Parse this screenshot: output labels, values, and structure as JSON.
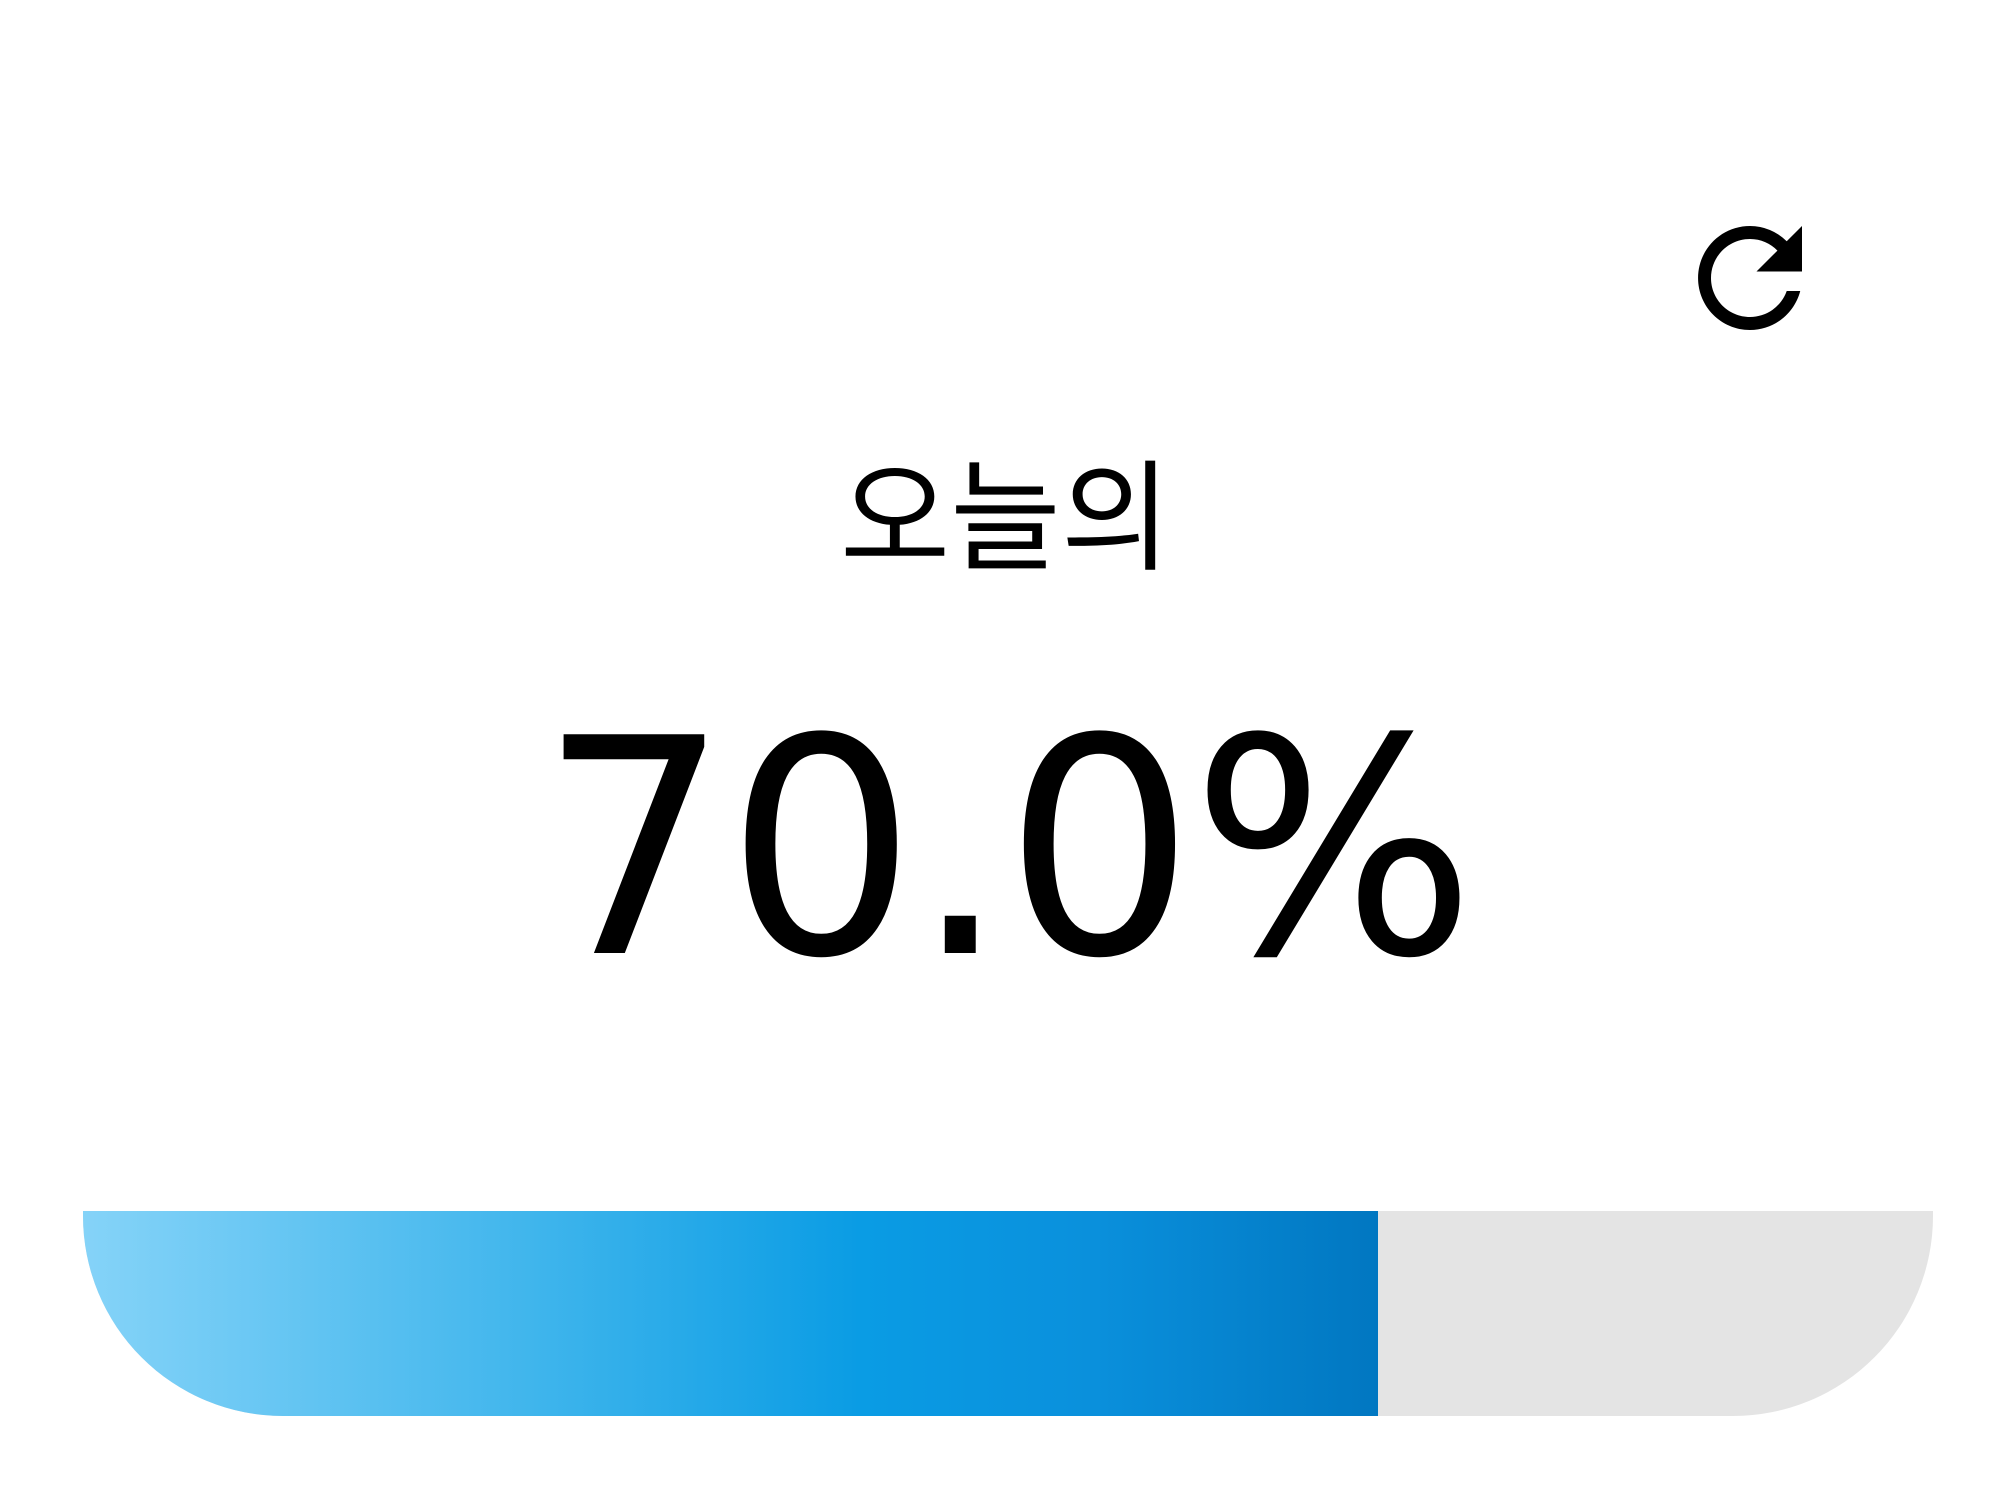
{
  "widget": {
    "title": "오늘의",
    "value_text": "70.0%",
    "progress": 0.7,
    "refresh_icon": "refresh-icon",
    "colors": {
      "fill_start": "#85d3f8",
      "fill_end": "#0177c1",
      "track": "#e4e4e4",
      "text": "#000000"
    }
  }
}
